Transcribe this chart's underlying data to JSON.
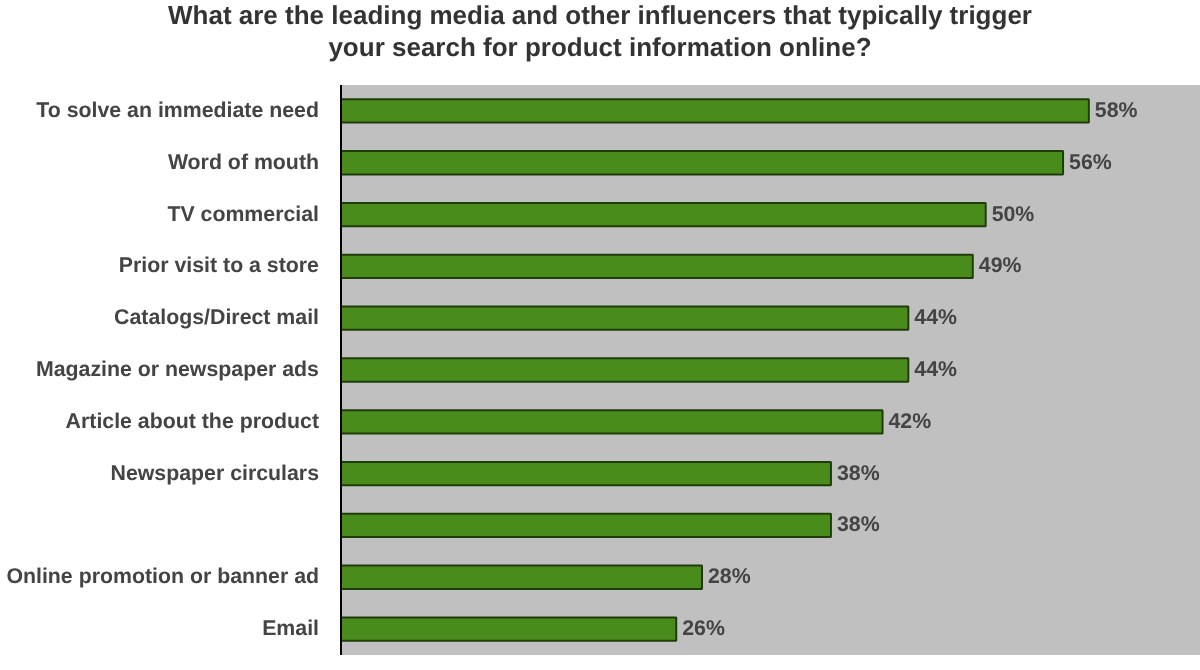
{
  "chart_data": {
    "type": "bar",
    "orientation": "horizontal",
    "title": "What are the leading media and other influencers that typically trigger\nyour search for product information online?",
    "categories": [
      "To solve an immediate need",
      "Word of mouth",
      "TV commercial",
      "Prior visit to a store",
      "Catalogs/Direct mail",
      "Magazine or newspaper ads",
      "Article about the product",
      "Newspaper circulars",
      null,
      "Online promotion or banner ad",
      "Email"
    ],
    "values": [
      58,
      56,
      50,
      49,
      44,
      44,
      42,
      38,
      38,
      28,
      26
    ],
    "value_labels": [
      "58%",
      "56%",
      "50%",
      "49%",
      "44%",
      "44%",
      "42%",
      "38%",
      "38%",
      "28%",
      "26%"
    ],
    "color": "#4a8c1c",
    "grid": false,
    "tick_labels": "y"
  }
}
